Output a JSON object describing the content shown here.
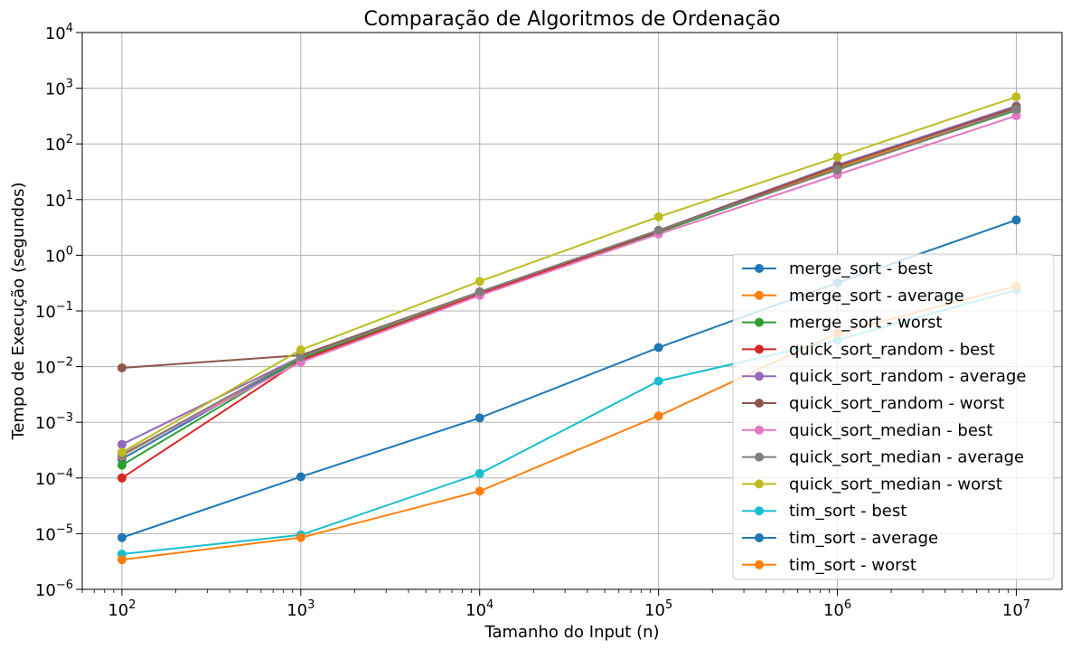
{
  "chart_data": {
    "type": "line",
    "title": "Comparação de Algoritmos de Ordenação",
    "xlabel": "Tamanho do Input (n)",
    "ylabel": "Tempo de Execução (segundos)",
    "xscale": "log",
    "yscale": "log",
    "xlim": [
      60,
      18000000
    ],
    "ylim": [
      1e-06,
      10000
    ],
    "grid": true,
    "legend_position": "lower-right",
    "x_ticks": [
      100,
      1000,
      10000,
      100000,
      1000000,
      10000000
    ],
    "x_tick_labels": [
      {
        "base": "10",
        "exp": "2"
      },
      {
        "base": "10",
        "exp": "3"
      },
      {
        "base": "10",
        "exp": "4"
      },
      {
        "base": "10",
        "exp": "5"
      },
      {
        "base": "10",
        "exp": "6"
      },
      {
        "base": "10",
        "exp": "7"
      }
    ],
    "y_ticks": [
      1e-06,
      1e-05,
      0.0001,
      0.001,
      0.01,
      0.1,
      1,
      10,
      100,
      1000,
      10000
    ],
    "y_tick_labels": [
      {
        "base": "10",
        "exp": "−6"
      },
      {
        "base": "10",
        "exp": "−5"
      },
      {
        "base": "10",
        "exp": "−4"
      },
      {
        "base": "10",
        "exp": "−3"
      },
      {
        "base": "10",
        "exp": "−2"
      },
      {
        "base": "10",
        "exp": "−1"
      },
      {
        "base": "10",
        "exp": "0"
      },
      {
        "base": "10",
        "exp": "1"
      },
      {
        "base": "10",
        "exp": "2"
      },
      {
        "base": "10",
        "exp": "3"
      },
      {
        "base": "10",
        "exp": "4"
      }
    ],
    "x": [
      100,
      1000,
      10000,
      100000,
      1000000,
      10000000
    ],
    "series": [
      {
        "name": "merge_sort - best",
        "color": "#1f77b4",
        "values": [
          0.00022,
          0.014,
          0.21,
          2.6,
          36,
          400
        ]
      },
      {
        "name": "merge_sort - average",
        "color": "#ff7f0e",
        "values": [
          0.00025,
          0.015,
          0.21,
          2.7,
          37,
          410
        ]
      },
      {
        "name": "merge_sort - worst",
        "color": "#2ca02c",
        "values": [
          0.00017,
          0.014,
          0.2,
          2.6,
          35,
          400
        ]
      },
      {
        "name": "quick_sort_random - best",
        "color": "#d62728",
        "values": [
          0.0001,
          0.013,
          0.2,
          2.7,
          40,
          450
        ]
      },
      {
        "name": "quick_sort_random - average",
        "color": "#9467bd",
        "values": [
          0.0004,
          0.015,
          0.22,
          2.8,
          42,
          480
        ]
      },
      {
        "name": "quick_sort_random - worst",
        "color": "#8c564b",
        "values": [
          0.0095,
          0.016,
          0.22,
          2.8,
          40,
          460
        ]
      },
      {
        "name": "quick_sort_median - best",
        "color": "#e377c2",
        "values": [
          0.00027,
          0.012,
          0.19,
          2.4,
          28,
          320
        ]
      },
      {
        "name": "quick_sort_median - average",
        "color": "#7f7f7f",
        "values": [
          0.00026,
          0.015,
          0.22,
          2.8,
          34,
          420
        ]
      },
      {
        "name": "quick_sort_median - worst",
        "color": "#bcbd22",
        "values": [
          0.00029,
          0.02,
          0.34,
          4.9,
          58,
          700
        ]
      },
      {
        "name": "tim_sort - best",
        "color": "#17becf",
        "values": [
          4.3e-06,
          9.5e-06,
          0.00012,
          0.0055,
          0.03,
          0.24
        ]
      },
      {
        "name": "tim_sort - average",
        "color": "#1f77b4",
        "values": [
          8.5e-06,
          0.000105,
          0.0012,
          0.022,
          0.32,
          4.3
        ]
      },
      {
        "name": "tim_sort - worst",
        "color": "#ff7f0e",
        "values": [
          3.4e-06,
          8.5e-06,
          5.8e-05,
          0.0013,
          0.04,
          0.28
        ]
      }
    ]
  }
}
